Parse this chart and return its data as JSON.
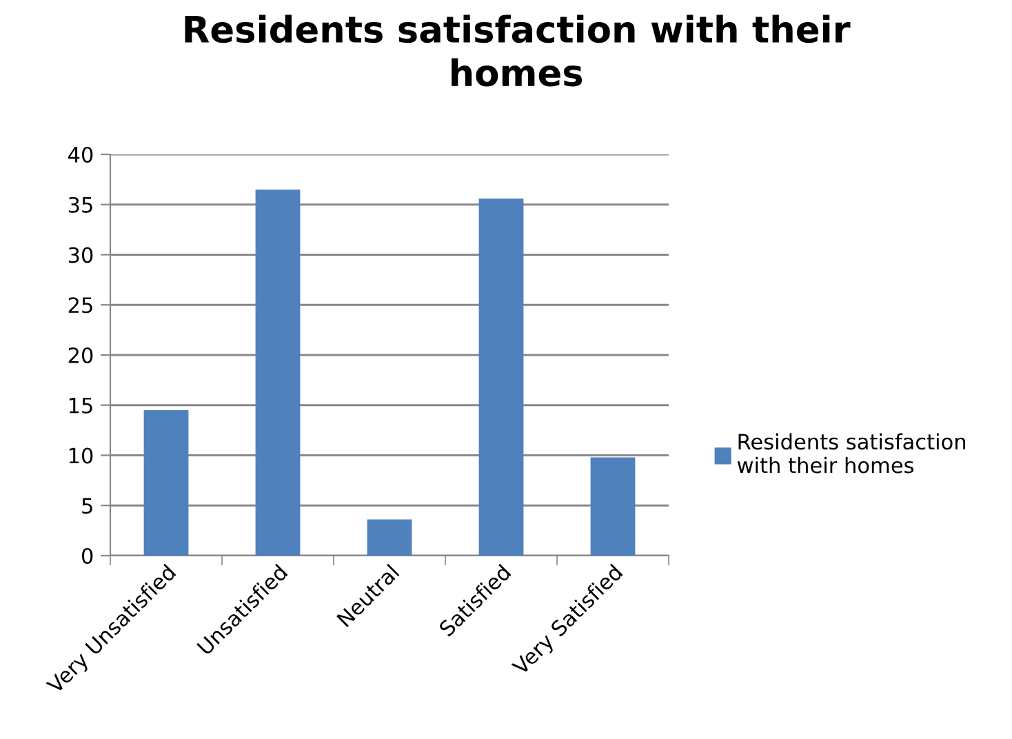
{
  "chart_data": {
    "type": "bar",
    "title": "Residents satisfaction with their\nhomes",
    "categories": [
      "Very Unsatisfied",
      "Unsatisfied",
      "Neutral",
      "Satisfied",
      "Very Satisfied"
    ],
    "series": [
      {
        "name": "Residents satisfaction\nwith their homes",
        "color": "#4f81bd",
        "values": [
          14.5,
          36.5,
          3.6,
          35.6,
          9.8
        ]
      }
    ],
    "ylim": [
      0,
      40
    ],
    "yticks": [
      0,
      5,
      10,
      15,
      20,
      25,
      30,
      35,
      40
    ],
    "grid": "y",
    "legend": "right"
  }
}
